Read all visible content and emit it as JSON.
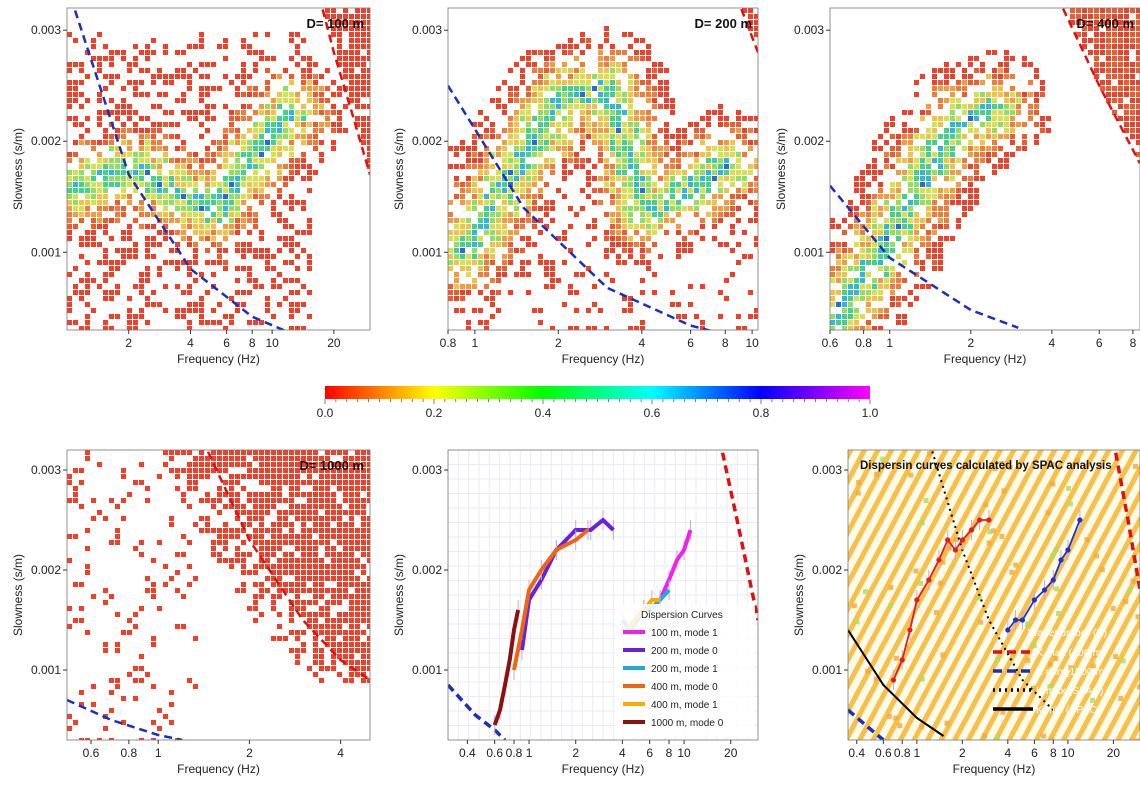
{
  "colorbar": {
    "ticks": [
      "0.0",
      "0.2",
      "0.4",
      "0.6",
      "0.8",
      "1.0"
    ],
    "stops": [
      "#ff0000",
      "#ffff00",
      "#00ff00",
      "#00ffff",
      "#0000ff",
      "#ff00ff"
    ]
  },
  "colors": {
    "kmax": "#dd1111",
    "kmin": "#1a2fbd",
    "heat_low": "#f04a2a",
    "heat_mid": "#f58c3c",
    "spac_curve": "#e02020",
    "spac_curve2": "#2233cc"
  },
  "chart_data": [
    {
      "type": "heatmap",
      "annotation": "D= 100 m",
      "xlabel": "Frequency (Hz)",
      "ylabel": "Slowness (s/m)",
      "xscale": "log",
      "xlim": [
        1.0,
        30
      ],
      "ylim": [
        0.0003,
        0.0032
      ],
      "xticks": [
        "2",
        "4",
        "6",
        "8",
        "10",
        "20"
      ],
      "yticks": [
        "0.001",
        "0.002",
        "0.003"
      ],
      "kmin_curve": [
        [
          1.0,
          0.0034
        ],
        [
          2,
          0.0017
        ],
        [
          4,
          0.00085
        ],
        [
          8,
          0.00042
        ],
        [
          12,
          0.00028
        ]
      ],
      "kmax_curve": [
        [
          17,
          0.0033
        ],
        [
          20,
          0.0028
        ],
        [
          25,
          0.0022
        ],
        [
          30,
          0.0017
        ]
      ],
      "ridge": [
        [
          1.1,
          0.0016
        ],
        [
          2,
          0.0018
        ],
        [
          3,
          0.0016
        ],
        [
          5,
          0.0014
        ],
        [
          8,
          0.0019
        ],
        [
          12,
          0.0023
        ]
      ]
    },
    {
      "type": "heatmap",
      "annotation": "D= 200 m",
      "xlabel": "Frequency (Hz)",
      "ylabel": "Slowness (s/m)",
      "xscale": "log",
      "xlim": [
        0.8,
        10.5
      ],
      "ylim": [
        0.0003,
        0.0032
      ],
      "xticks": [
        "0.8",
        "1",
        "2",
        "4",
        "6",
        "8",
        "10"
      ],
      "yticks": [
        "0.001",
        "0.002",
        "0.003"
      ],
      "kmin_curve": [
        [
          0.8,
          0.0025
        ],
        [
          1.5,
          0.0014
        ],
        [
          3,
          0.00068
        ],
        [
          6,
          0.00034
        ],
        [
          8,
          0.00026
        ]
      ],
      "kmax_curve": [
        [
          8.8,
          0.0033
        ],
        [
          10.5,
          0.0028
        ]
      ],
      "ridge": [
        [
          0.9,
          0.001
        ],
        [
          1.3,
          0.0017
        ],
        [
          2,
          0.0024
        ],
        [
          3,
          0.0025
        ],
        [
          4,
          0.0014
        ],
        [
          6,
          0.0016
        ],
        [
          8,
          0.0018
        ]
      ]
    },
    {
      "type": "heatmap",
      "annotation": "D= 400 m",
      "xlabel": "Frequency (Hz)",
      "ylabel": "Slowness (s/m)",
      "xscale": "log",
      "xlim": [
        0.6,
        8.5
      ],
      "ylim": [
        0.0003,
        0.0032
      ],
      "xticks": [
        "0.6",
        "0.8",
        "1",
        "2",
        "4",
        "6",
        "8"
      ],
      "yticks": [
        "0.001",
        "0.002",
        "0.003"
      ],
      "kmin_curve": [
        [
          0.6,
          0.0016
        ],
        [
          1.0,
          0.00095
        ],
        [
          2,
          0.00048
        ],
        [
          3,
          0.00032
        ]
      ],
      "kmax_curve": [
        [
          4.2,
          0.0033
        ],
        [
          6,
          0.0025
        ],
        [
          8.5,
          0.0018
        ]
      ],
      "ridge": [
        [
          0.6,
          0.0004
        ],
        [
          0.9,
          0.001
        ],
        [
          1.3,
          0.0017
        ],
        [
          1.8,
          0.0022
        ],
        [
          2.4,
          0.0023
        ]
      ]
    },
    {
      "type": "heatmap",
      "annotation": "D= 1000 m",
      "xlabel": "Frequency (Hz)",
      "ylabel": "Slowness (s/m)",
      "xscale": "log",
      "xlim": [
        0.5,
        5.0
      ],
      "ylim": [
        0.0003,
        0.0032
      ],
      "xticks": [
        "0.6",
        "0.8",
        "1",
        "2",
        "4"
      ],
      "yticks": [
        "0.001",
        "0.002",
        "0.003"
      ],
      "kmin_curve": [
        [
          0.5,
          0.0007
        ],
        [
          0.7,
          0.0005
        ],
        [
          1.0,
          0.00035
        ],
        [
          1.2,
          0.0003
        ]
      ],
      "kmax_curve": [
        [
          1.4,
          0.0033
        ],
        [
          2,
          0.0023
        ],
        [
          3,
          0.0015
        ],
        [
          4,
          0.0011
        ],
        [
          5,
          0.0009
        ]
      ],
      "ridge": []
    },
    {
      "type": "line",
      "xlabel": "Frequency (Hz)",
      "ylabel": "Slowness (s/m)",
      "xscale": "log",
      "xlim": [
        0.3,
        30
      ],
      "ylim": [
        0.0003,
        0.0032
      ],
      "xticks": [
        "0.4",
        "0.6",
        "0.8",
        "1",
        "2",
        "4",
        "6",
        "8",
        "10",
        "20"
      ],
      "yticks": [
        "0.001",
        "0.002",
        "0.003"
      ],
      "legend_title": "Dispersion Curves",
      "legend_position": "center-right",
      "series": [
        {
          "name": "100 m, mode 1",
          "color": "#ee22ee",
          "x": [
            6,
            7,
            8,
            9,
            10,
            11
          ],
          "y": [
            0.0016,
            0.0017,
            0.0019,
            0.0021,
            0.0022,
            0.0024
          ]
        },
        {
          "name": "200 m, mode 0",
          "color": "#6622dd",
          "x": [
            0.9,
            1.0,
            1.2,
            1.5,
            2,
            2.5,
            3,
            3.5
          ],
          "y": [
            0.0012,
            0.0017,
            0.0019,
            0.0022,
            0.0024,
            0.0024,
            0.0025,
            0.0024
          ]
        },
        {
          "name": "200 m, mode 1",
          "color": "#22aadd",
          "x": [
            4,
            4.5,
            5,
            5.5,
            6,
            7,
            8
          ],
          "y": [
            0.0015,
            0.0014,
            0.0015,
            0.0016,
            0.0016,
            0.0017,
            0.0018
          ]
        },
        {
          "name": "400 m, mode 0",
          "color": "#ee6611",
          "x": [
            0.8,
            0.9,
            1.0,
            1.2,
            1.5,
            2,
            2.4
          ],
          "y": [
            0.001,
            0.0014,
            0.0018,
            0.002,
            0.0022,
            0.0023,
            0.0024
          ]
        },
        {
          "name": "400 m, mode 1",
          "color": "#ffaa00",
          "x": [
            4.3,
            4.8,
            5.5,
            6.2,
            7
          ],
          "y": [
            0.0014,
            0.0015,
            0.0016,
            0.0017,
            0.0017
          ]
        },
        {
          "name": "1000 m, mode 0",
          "color": "#8b1010",
          "x": [
            0.6,
            0.65,
            0.7,
            0.75,
            0.8,
            0.85
          ],
          "y": [
            0.00045,
            0.0006,
            0.00085,
            0.0011,
            0.0014,
            0.0016
          ]
        }
      ],
      "kmin_curve": [
        [
          0.3,
          0.00085
        ],
        [
          0.45,
          0.00055
        ],
        [
          0.6,
          0.0004
        ],
        [
          0.7,
          0.0003
        ]
      ],
      "kmax_curve": [
        [
          17,
          0.0033
        ],
        [
          22,
          0.0025
        ],
        [
          30,
          0.0015
        ]
      ]
    },
    {
      "type": "line",
      "title": "Dispersin curves calculated by SPAC analysis",
      "xlabel": "Frequency (Hz)",
      "ylabel": "Slowness (s/m)",
      "xscale": "log",
      "xlim": [
        0.35,
        30
      ],
      "ylim": [
        0.0003,
        0.0032
      ],
      "xticks": [
        "0.4",
        "0.6",
        "0.8",
        "1",
        "2",
        "4",
        "6",
        "8",
        "10",
        "20"
      ],
      "yticks": [
        "0.001",
        "0.002",
        "0.003"
      ],
      "legend_title": "Wavenumber (K)",
      "legend_position": "bottom-right",
      "legend": [
        {
          "label": "K max (100 m)",
          "style": "dash",
          "color": "#dd1111"
        },
        {
          "label": "K min (1000 m)",
          "style": "dash",
          "color": "#1a2fbd"
        },
        {
          "label": "K max (SPAC)",
          "style": "dot",
          "color": "#000000"
        },
        {
          "label": "K min (SPAC)",
          "style": "solid",
          "color": "#000000"
        }
      ],
      "series": [
        {
          "name": "",
          "color": "#e02020",
          "x": [
            0.7,
            0.8,
            0.9,
            1.0,
            1.2,
            1.4,
            1.6,
            1.8,
            2.0,
            2.3,
            2.6,
            3.0
          ],
          "y": [
            0.0009,
            0.0011,
            0.0014,
            0.0017,
            0.0019,
            0.0021,
            0.0023,
            0.0022,
            0.0023,
            0.0024,
            0.0025,
            0.0025
          ]
        },
        {
          "name": "",
          "color": "#2233cc",
          "x": [
            4,
            4.5,
            5,
            6,
            7,
            8,
            9,
            10,
            12
          ],
          "y": [
            0.0014,
            0.0015,
            0.0015,
            0.0017,
            0.0018,
            0.0019,
            0.0021,
            0.0022,
            0.0025
          ]
        }
      ],
      "kmax_curve": [
        [
          20,
          0.0033
        ],
        [
          25,
          0.0025
        ],
        [
          30,
          0.0018
        ]
      ],
      "kmin_curve": [
        [
          0.35,
          0.0006
        ],
        [
          0.5,
          0.0004
        ],
        [
          0.6,
          0.0003
        ]
      ],
      "spac_kmax": [
        [
          1.2,
          0.0033
        ],
        [
          2,
          0.0022
        ],
        [
          3,
          0.0015
        ],
        [
          5,
          0.0009
        ],
        [
          8,
          0.0006
        ]
      ],
      "spac_kmin": [
        [
          0.35,
          0.0014
        ],
        [
          0.6,
          0.00085
        ],
        [
          1,
          0.00052
        ],
        [
          1.5,
          0.00034
        ]
      ]
    }
  ]
}
